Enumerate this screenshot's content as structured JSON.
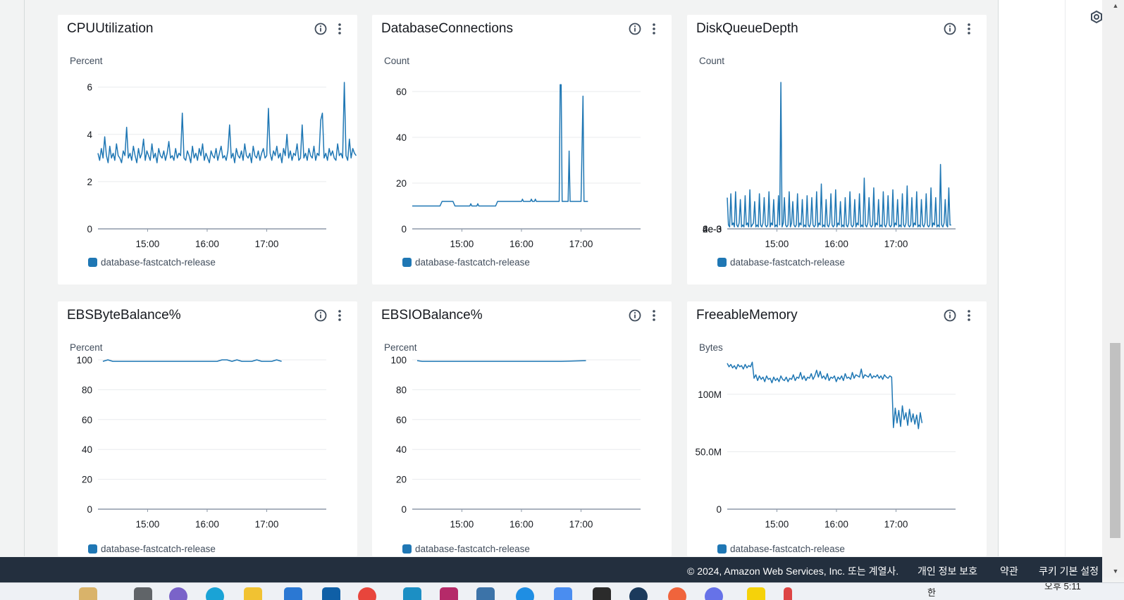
{
  "widgets": [
    {
      "id": "cpu",
      "title": "CPUUtilization",
      "unit": "Percent",
      "legend": "database-fastcatch-release",
      "y_ticks": [
        "6",
        "4",
        "2",
        "0"
      ],
      "x_ticks": [
        "15:00",
        "16:00",
        "17:00"
      ],
      "chart_data": {
        "type": "line",
        "title": "CPUUtilization",
        "ylabel": "Percent",
        "ylim": [
          0,
          6.2
        ],
        "x_range_min": [
          0,
          230
        ],
        "x_ticks_min": [
          50,
          110,
          170
        ],
        "series": [
          {
            "name": "database-fastcatch-release",
            "color": "#1f77b4",
            "step_min": 1.7,
            "values": [
              3.2,
              2.9,
              3.4,
              3.0,
              3.9,
              3.1,
              2.8,
              3.5,
              3.0,
              3.2,
              2.9,
              3.6,
              3.1,
              3.0,
              2.8,
              3.3,
              3.1,
              4.3,
              3.0,
              3.2,
              2.9,
              3.5,
              3.1,
              2.8,
              3.4,
              3.0,
              3.2,
              3.8,
              2.9,
              3.3,
              3.1,
              2.9,
              3.6,
              3.0,
              3.2,
              2.8,
              3.4,
              3.1,
              3.0,
              3.3,
              2.9,
              3.2,
              3.7,
              3.0,
              3.1,
              2.9,
              3.4,
              3.0,
              3.2,
              3.1,
              4.9,
              3.0,
              2.9,
              3.3,
              3.1,
              2.8,
              3.5,
              3.0,
              3.2,
              2.9,
              3.4,
              3.1,
              3.6,
              2.9,
              3.2,
              3.0,
              2.8,
              3.3,
              3.1,
              3.0,
              3.4,
              2.9,
              3.2,
              3.5,
              3.0,
              3.1,
              2.9,
              3.3,
              4.4,
              3.0,
              3.2,
              2.8,
              3.4,
              3.1,
              3.0,
              3.3,
              2.9,
              3.6,
              3.1,
              3.0,
              3.2,
              2.8,
              3.5,
              3.1,
              3.0,
              3.3,
              2.9,
              3.2,
              3.4,
              3.0,
              3.1,
              5.1,
              3.2,
              2.9,
              3.3,
              3.1,
              3.5,
              3.0,
              3.2,
              2.8,
              3.4,
              3.1,
              4.0,
              3.0,
              3.3,
              2.9,
              3.2,
              3.1,
              3.6,
              2.9,
              3.0,
              4.4,
              3.0,
              3.2,
              2.9,
              3.4,
              3.1,
              3.0,
              3.5,
              2.9,
              3.2,
              3.1,
              4.6,
              4.9,
              3.0,
              3.2,
              2.9,
              3.4,
              3.1,
              3.3,
              3.0,
              2.9,
              3.6,
              3.1,
              3.2,
              3.0,
              6.2,
              3.1,
              2.9,
              3.8,
              3.0,
              3.4,
              3.2,
              3.1
            ]
          }
        ]
      }
    },
    {
      "id": "dbconn",
      "title": "DatabaseConnections",
      "unit": "Count",
      "legend": "database-fastcatch-release",
      "y_ticks": [
        "60",
        "40",
        "20",
        "0"
      ],
      "x_ticks": [
        "15:00",
        "16:00",
        "17:00"
      ],
      "chart_data": {
        "type": "line",
        "title": "DatabaseConnections",
        "ylabel": "Count",
        "ylim": [
          0,
          64
        ],
        "x_range_min": [
          0,
          230
        ],
        "x_ticks_min": [
          50,
          110,
          170
        ],
        "series": [
          {
            "name": "database-fastcatch-release",
            "color": "#1f77b4",
            "x": [
              0,
              28,
              30,
              41,
              43,
              58,
              59,
              60,
              65,
              66,
              67,
              84,
              86,
              110,
              111,
              112,
              119,
              120,
              121,
              123,
              124,
              125,
              148,
              149,
              150,
              151,
              152,
              157,
              158,
              159,
              160,
              170,
              172,
              173,
              177
            ],
            "values": [
              10,
              10,
              12,
              12,
              10,
              10,
              11,
              10,
              10,
              11,
              10,
              10,
              12,
              12,
              13,
              12,
              12,
              13,
              12,
              12,
              13,
              12,
              12,
              63,
              63,
              12,
              12,
              12,
              34,
              12,
              12,
              12,
              58,
              12,
              12
            ]
          }
        ]
      }
    },
    {
      "id": "diskq",
      "title": "DiskQueueDepth",
      "unit": "Count",
      "legend": "database-fastcatch-release",
      "y_ticks": [
        "6e-3",
        "4e-3",
        "2e-3",
        "0"
      ],
      "x_ticks": [
        "15:00",
        "16:00",
        "17:00"
      ],
      "chart_data": {
        "type": "line",
        "title": "DiskQueueDepth",
        "ylabel": "Count",
        "ylim": [
          0,
          0.0075
        ],
        "x_range_min": [
          0,
          230
        ],
        "x_ticks_min": [
          50,
          110,
          170
        ],
        "series": [
          {
            "name": "database-fastcatch-release",
            "color": "#1f77b4",
            "step_min": 1.2,
            "values": [
              0.0016,
              0.0002,
              0.0001,
              0.0018,
              0.0002,
              0.0003,
              0.0001,
              0.0019,
              0.0002,
              0.0001,
              0.0003,
              0.0015,
              0.0001,
              0.0002,
              0.0001,
              0.0017,
              0.0002,
              0.0003,
              0.0001,
              0.002,
              0.0001,
              0.0002,
              0.0003,
              0.0014,
              0.0001,
              0.0002,
              0.0001,
              0.0018,
              0.0002,
              0.0001,
              0.0003,
              0.0016,
              0.0002,
              0.0001,
              0.0002,
              0.0019,
              0.0001,
              0.0003,
              0.0002,
              0.0015,
              0.0001,
              0.0002,
              0.0001,
              0.0017,
              0.0002,
              0.0075,
              0.0001,
              0.0003,
              0.0016,
              0.0002,
              0.0001,
              0.0002,
              0.0019,
              0.0001,
              0.0003,
              0.0014,
              0.0002,
              0.0001,
              0.0002,
              0.0018,
              0.0001,
              0.0003,
              0.0002,
              0.0015,
              0.0001,
              0.0002,
              0.0001,
              0.0017,
              0.0002,
              0.0001,
              0.0003,
              0.0016,
              0.0002,
              0.0001,
              0.0002,
              0.0019,
              0.0001,
              0.0003,
              0.0002,
              0.0023,
              0.0001,
              0.0002,
              0.0001,
              0.0015,
              0.0002,
              0.0001,
              0.0003,
              0.0018,
              0.0002,
              0.0001,
              0.0002,
              0.002,
              0.0001,
              0.0003,
              0.0002,
              0.0014,
              0.0001,
              0.0002,
              0.0001,
              0.0016,
              0.0002,
              0.0001,
              0.0003,
              0.0019,
              0.0002,
              0.0001,
              0.0002,
              0.0015,
              0.0001,
              0.0003,
              0.0002,
              0.0018,
              0.0001,
              0.0002,
              0.0001,
              0.0026,
              0.0002,
              0.0001,
              0.0003,
              0.0016,
              0.0002,
              0.0001,
              0.0002,
              0.0021,
              0.0001,
              0.0003,
              0.0002,
              0.0015,
              0.0001,
              0.0002,
              0.0001,
              0.0019,
              0.0002,
              0.0001,
              0.0003,
              0.0017,
              0.0002,
              0.0001,
              0.0002,
              0.002,
              0.0001,
              0.0003,
              0.0002,
              0.0015,
              0.0001,
              0.0002,
              0.0001,
              0.0018,
              0.0002,
              0.0001,
              0.0003,
              0.0022,
              0.0002,
              0.0001,
              0.0002,
              0.0016,
              0.0001,
              0.0003,
              0.0002,
              0.0019,
              0.0001,
              0.0002,
              0.0001,
              0.0015,
              0.0002,
              0.0001,
              0.0003,
              0.0018,
              0.0002,
              0.0001,
              0.0002,
              0.0021,
              0.0001,
              0.0003,
              0.0002,
              0.0016,
              0.0001,
              0.0002,
              0.0001,
              0.0033,
              0.0002,
              0.0001,
              0.0003,
              0.0015,
              0.0002,
              0.0001,
              0.0021,
              0.0002,
              0.0002
            ]
          }
        ]
      }
    },
    {
      "id": "ebsbyte",
      "title": "EBSByteBalance%",
      "unit": "Percent",
      "legend": "database-fastcatch-release",
      "y_ticks": [
        "100",
        "80",
        "60",
        "40",
        "20",
        "0"
      ],
      "x_ticks": [
        "15:00",
        "16:00",
        "17:00"
      ],
      "chart_data": {
        "type": "line",
        "title": "EBSByteBalance%",
        "ylabel": "Percent",
        "ylim": [
          0,
          100
        ],
        "x_range_min": [
          0,
          230
        ],
        "x_ticks_min": [
          50,
          110,
          170
        ],
        "series": [
          {
            "name": "database-fastcatch-release",
            "color": "#1f77b4",
            "x": [
              5,
              10,
              15,
              120,
              125,
              130,
              135,
              140,
              145,
              155,
              160,
              165,
              175,
              180,
              185
            ],
            "values": [
              99,
              100,
              99,
              99,
              100,
              100,
              99,
              100,
              99,
              99,
              100,
              99,
              99,
              100,
              99
            ]
          }
        ]
      }
    },
    {
      "id": "ebsio",
      "title": "EBSIOBalance%",
      "unit": "Percent",
      "legend": "database-fastcatch-release",
      "y_ticks": [
        "100",
        "80",
        "60",
        "40",
        "20",
        "0"
      ],
      "x_ticks": [
        "15:00",
        "16:00",
        "17:00"
      ],
      "chart_data": {
        "type": "line",
        "title": "EBSIOBalance%",
        "ylabel": "Percent",
        "ylim": [
          0,
          100
        ],
        "x_range_min": [
          0,
          230
        ],
        "x_ticks_min": [
          50,
          110,
          170
        ],
        "series": [
          {
            "name": "database-fastcatch-release",
            "color": "#1f77b4",
            "x": [
              5,
              10,
              100,
              140,
              150,
              175
            ],
            "values": [
              99.5,
              99,
              99,
              99,
              99,
              99.5
            ]
          }
        ]
      }
    },
    {
      "id": "freemem",
      "title": "FreeableMemory",
      "unit": "Bytes",
      "legend": "database-fastcatch-release",
      "y_ticks": [
        "100M",
        "50.0M",
        "0"
      ],
      "x_ticks": [
        "15:00",
        "16:00",
        "17:00"
      ],
      "chart_data": {
        "type": "line",
        "title": "FreeableMemory",
        "ylabel": "Bytes",
        "ylim": [
          0,
          130000000
        ],
        "x_range_min": [
          0,
          230
        ],
        "x_ticks_min": [
          50,
          110,
          170
        ],
        "series": [
          {
            "name": "database-fastcatch-release",
            "color": "#1f77b4",
            "step_min": 1.8,
            "values": [
              127000000.0,
              124000000.0,
              126000000.0,
              123000000.0,
              125000000.0,
              122000000.0,
              126000000.0,
              124000000.0,
              125000000.0,
              122000000.0,
              126000000.0,
              123000000.0,
              125000000.0,
              124000000.0,
              128000000.0,
              114000000.0,
              117000000.0,
              112000000.0,
              116000000.0,
              113000000.0,
              115000000.0,
              111000000.0,
              116000000.0,
              113000000.0,
              114000000.0,
              110000000.0,
              115000000.0,
              112000000.0,
              114000000.0,
              111000000.0,
              116000000.0,
              113000000.0,
              112000000.0,
              115000000.0,
              111000000.0,
              114000000.0,
              113000000.0,
              117000000.0,
              112000000.0,
              115000000.0,
              114000000.0,
              119000000.0,
              113000000.0,
              116000000.0,
              112000000.0,
              115000000.0,
              114000000.0,
              118000000.0,
              113000000.0,
              116000000.0,
              121000000.0,
              115000000.0,
              120000000.0,
              114000000.0,
              116000000.0,
              113000000.0,
              118000000.0,
              112000000.0,
              115000000.0,
              114000000.0,
              116000000.0,
              111000000.0,
              115000000.0,
              113000000.0,
              116000000.0,
              112000000.0,
              118000000.0,
              114000000.0,
              115000000.0,
              113000000.0,
              119000000.0,
              114000000.0,
              117000000.0,
              116000000.0,
              115000000.0,
              122000000.0,
              114000000.0,
              117000000.0,
              116000000.0,
              115000000.0,
              118000000.0,
              114000000.0,
              116000000.0,
              115000000.0,
              117000000.0,
              114000000.0,
              116000000.0,
              113000000.0,
              117000000.0,
              115000000.0,
              114000000.0,
              116000000.0,
              115000000.0,
              71000000.0,
              88000000.0,
              75000000.0,
              86000000.0,
              72000000.0,
              90000000.0,
              78000000.0,
              84000000.0,
              73000000.0,
              87000000.0,
              76000000.0,
              83000000.0,
              74000000.0,
              82000000.0,
              70000000.0,
              84000000.0,
              75000000.0
            ]
          }
        ]
      }
    }
  ],
  "footer": {
    "copyright": "© 2024, Amazon Web Services, Inc. 또는 계열사.",
    "privacy": "개인 정보 보호",
    "terms": "약관",
    "cookies": "쿠키 기본 설정"
  },
  "taskbar": {
    "clock": "오후 5:11",
    "ime": "한"
  },
  "colors": {
    "series": "#1f77b4",
    "footer_bg": "#232f3e",
    "grid": "#e9ebed"
  }
}
